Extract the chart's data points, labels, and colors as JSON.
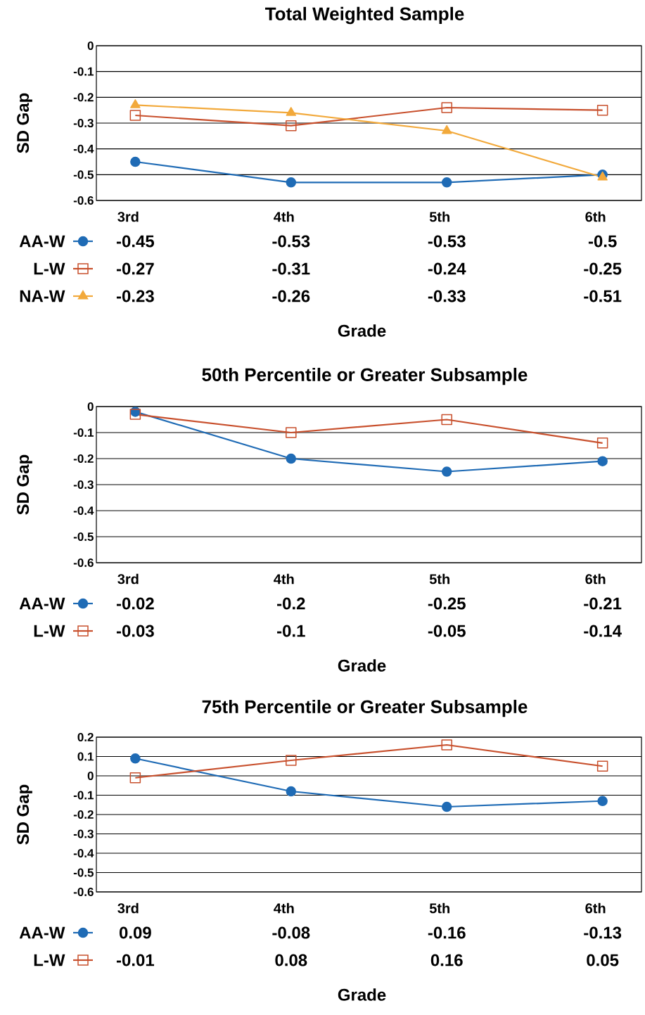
{
  "chart_data": [
    {
      "type": "line",
      "title": "Total Weighted Sample",
      "xlabel": "Grade",
      "ylabel": "SD Gap",
      "categories": [
        "3rd",
        "4th",
        "5th",
        "6th"
      ],
      "series": [
        {
          "name": "AA-W",
          "color": "#1f6bb5",
          "marker": "circle",
          "values": [
            -0.45,
            -0.53,
            -0.53,
            -0.5
          ]
        },
        {
          "name": "L-W",
          "color": "#c8502d",
          "marker": "square",
          "values": [
            -0.27,
            -0.31,
            -0.24,
            -0.25
          ]
        },
        {
          "name": "NA-W",
          "color": "#f2a93b",
          "marker": "triangle",
          "values": [
            -0.23,
            -0.26,
            -0.33,
            -0.51
          ]
        }
      ],
      "ylim": [
        -0.6,
        0
      ],
      "yticks": [
        -0.6,
        -0.5,
        -0.4,
        -0.3,
        -0.2,
        -0.1,
        0
      ],
      "grid": "y",
      "legend": "bottom",
      "data_labels": true
    },
    {
      "type": "line",
      "title": "50th Percentile or Greater Subsample",
      "xlabel": "Grade",
      "ylabel": "SD Gap",
      "categories": [
        "3rd",
        "4th",
        "5th",
        "6th"
      ],
      "series": [
        {
          "name": "AA-W",
          "color": "#1f6bb5",
          "marker": "circle",
          "values": [
            -0.02,
            -0.2,
            -0.25,
            -0.21
          ]
        },
        {
          "name": "L-W",
          "color": "#c8502d",
          "marker": "square",
          "values": [
            -0.03,
            -0.1,
            -0.05,
            -0.14
          ]
        }
      ],
      "ylim": [
        -0.6,
        0
      ],
      "yticks": [
        -0.6,
        -0.5,
        -0.4,
        -0.3,
        -0.2,
        -0.1,
        0
      ],
      "grid": "y",
      "legend": "bottom",
      "data_labels": true
    },
    {
      "type": "line",
      "title": "75th Percentile or Greater Subsample",
      "xlabel": "Grade",
      "ylabel": "SD Gap",
      "categories": [
        "3rd",
        "4th",
        "5th",
        "6th"
      ],
      "series": [
        {
          "name": "AA-W",
          "color": "#1f6bb5",
          "marker": "circle",
          "values": [
            0.09,
            -0.08,
            -0.16,
            -0.13
          ]
        },
        {
          "name": "L-W",
          "color": "#c8502d",
          "marker": "square",
          "values": [
            -0.01,
            0.08,
            0.16,
            0.05
          ]
        }
      ],
      "ylim": [
        -0.6,
        0.2
      ],
      "yticks": [
        -0.6,
        -0.5,
        -0.4,
        -0.3,
        -0.2,
        -0.1,
        0,
        0.1,
        0.2
      ],
      "grid": "y",
      "legend": "bottom",
      "data_labels": true
    }
  ]
}
